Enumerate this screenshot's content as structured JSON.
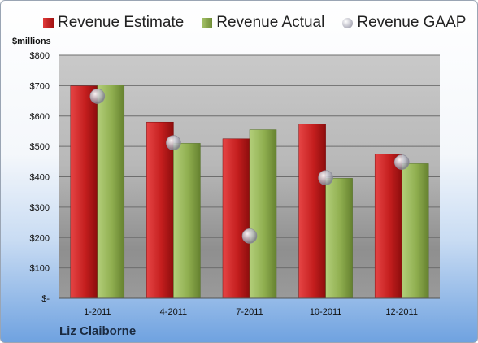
{
  "legend": {
    "estimate": "Revenue Estimate",
    "actual": "Revenue Actual",
    "gaap": "Revenue GAAP"
  },
  "unit_label": "$millions",
  "company": "Liz Claiborne",
  "colors": {
    "estimate": "#c41e1e",
    "actual": "#8fae4f",
    "gaap": "#b9b9c4"
  },
  "chart_data": {
    "type": "bar",
    "categories": [
      "1-2011",
      "4-2011",
      "7-2011",
      "10-2011",
      "12-2011"
    ],
    "series": [
      {
        "name": "Revenue Estimate",
        "values": [
          699,
          580,
          525,
          574,
          475
        ]
      },
      {
        "name": "Revenue Actual",
        "values": [
          702,
          510,
          555,
          395,
          443
        ]
      },
      {
        "name": "Revenue GAAP",
        "type": "scatter",
        "values": [
          665,
          512,
          205,
          397,
          448
        ]
      }
    ],
    "ylabel": "$millions",
    "ylim": [
      0,
      800
    ],
    "yticks": [
      0,
      100,
      200,
      300,
      400,
      500,
      600,
      700,
      800
    ],
    "ytick_labels": [
      "$-",
      "$100",
      "$200",
      "$300",
      "$400",
      "$500",
      "$600",
      "$700",
      "$800"
    ],
    "grid": true,
    "legend_position": "top"
  }
}
